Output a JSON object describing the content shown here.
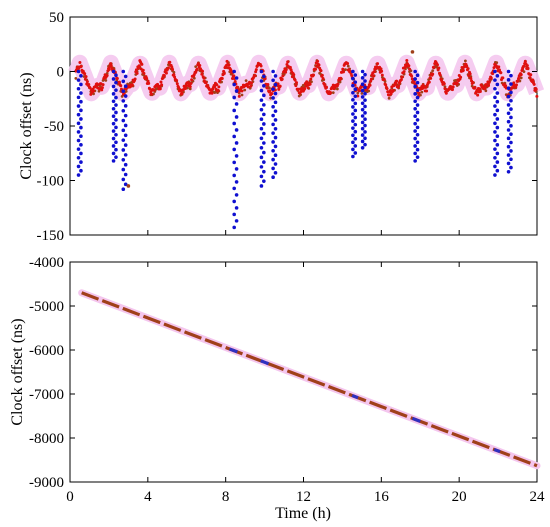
{
  "chart_data": [
    {
      "type": "scatter",
      "panel": "top",
      "ylabel": "Clock offset (ns)",
      "xlabel": "",
      "xlim": [
        0,
        24
      ],
      "ylim": [
        -150,
        50
      ],
      "xticks": [],
      "yticks": [
        50,
        0,
        -50,
        -100,
        -150
      ],
      "ytick_labels": [
        "50",
        "0",
        "-50",
        "-100",
        "-150"
      ],
      "grid": false,
      "legend": "none",
      "colors": {
        "red": "#e01010",
        "brown": "#a0401a",
        "blue": "#1010d0",
        "halo": "#f4c6ee"
      },
      "hump_times": [
        0.5,
        2.1,
        3.6,
        5.1,
        6.6,
        8.1,
        9.7,
        11.2,
        12.7,
        14.2,
        15.8,
        17.3,
        18.8,
        20.3,
        21.9,
        23.4
      ],
      "hump_peak": 8,
      "baseline": -13,
      "trough": -20,
      "blue_dips": [
        {
          "x": 0.5,
          "min": -95
        },
        {
          "x": 2.3,
          "min": -82
        },
        {
          "x": 2.8,
          "min": -108
        },
        {
          "x": 8.5,
          "min": -143
        },
        {
          "x": 9.9,
          "min": -105
        },
        {
          "x": 10.5,
          "min": -97
        },
        {
          "x": 14.6,
          "min": -78
        },
        {
          "x": 15.1,
          "min": -70
        },
        {
          "x": 17.8,
          "min": -82
        },
        {
          "x": 21.9,
          "min": -95
        },
        {
          "x": 22.6,
          "min": -92
        }
      ],
      "outliers": [
        {
          "x": 17.6,
          "y": 18
        },
        {
          "x": 3.0,
          "y": -105
        }
      ]
    },
    {
      "type": "line",
      "panel": "bottom",
      "ylabel": "Clock offset (ns)",
      "xlabel": "Time (h)",
      "xlim": [
        0,
        24
      ],
      "ylim": [
        -9000,
        -4000
      ],
      "xticks": [
        0,
        4,
        8,
        12,
        16,
        20,
        24
      ],
      "xtick_labels": [
        "0",
        "4",
        "8",
        "12",
        "16",
        "20",
        "24"
      ],
      "yticks": [
        -4000,
        -5000,
        -6000,
        -7000,
        -8000,
        -9000
      ],
      "ytick_labels": [
        "-4000",
        "-5000",
        "-6000",
        "-7000",
        "-8000",
        "-9000"
      ],
      "grid": false,
      "legend": "none",
      "colors": {
        "line": "#a0401a",
        "blue": "#3030c0",
        "halo": "#f4c6ee"
      },
      "line": {
        "x": [
          0.6,
          24
        ],
        "y": [
          -4700,
          -8630
        ]
      },
      "blue_segments": [
        {
          "x0": 8.2,
          "x1": 8.6
        },
        {
          "x0": 9.8,
          "x1": 10.2
        },
        {
          "x0": 14.5,
          "x1": 14.8
        },
        {
          "x0": 17.6,
          "x1": 18.0
        },
        {
          "x0": 21.8,
          "x1": 22.1
        }
      ]
    }
  ]
}
